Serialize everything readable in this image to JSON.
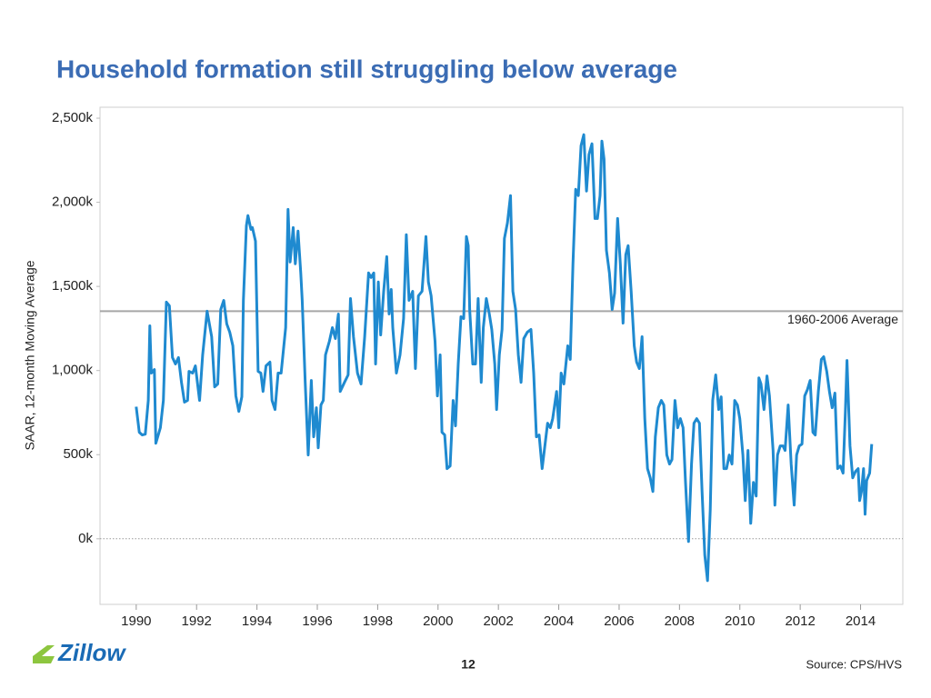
{
  "chart_data": {
    "type": "line",
    "title": "Household formation still struggling below average",
    "y_label": "SAAR, 12-month Moving Average",
    "xlim": [
      1988.8,
      2015.4
    ],
    "xticks": [
      1990,
      1992,
      1994,
      1996,
      1998,
      2000,
      2002,
      2004,
      2006,
      2008,
      2010,
      2012,
      2014
    ],
    "ylim": [
      -390,
      2565
    ],
    "yticks": [
      {
        "value": 0,
        "label": "0k"
      },
      {
        "value": 500,
        "label": "500k"
      },
      {
        "value": 1000,
        "label": "1,000k"
      },
      {
        "value": 1500,
        "label": "1,500k"
      },
      {
        "value": 2000,
        "label": "2,000k"
      },
      {
        "value": 2500,
        "label": "2,500k"
      }
    ],
    "zero_line": true,
    "reference_line": {
      "value": 1353,
      "label": "1960-2006 Average",
      "color": "#a6a6a6"
    },
    "series": [
      {
        "color": "#1f8ad0",
        "x": [
          1990.0,
          1990.1,
          1990.2,
          1990.3,
          1990.4,
          1990.45,
          1990.5,
          1990.6,
          1990.65,
          1990.8,
          1990.9,
          1991.0,
          1991.1,
          1991.2,
          1991.3,
          1991.4,
          1991.5,
          1991.6,
          1991.7,
          1991.75,
          1991.87,
          1991.96,
          1992.1,
          1992.2,
          1992.35,
          1992.5,
          1992.6,
          1992.7,
          1992.8,
          1992.9,
          1993.0,
          1993.1,
          1993.2,
          1993.3,
          1993.4,
          1993.5,
          1993.55,
          1993.65,
          1993.7,
          1993.8,
          1993.85,
          1993.95,
          1994.04,
          1994.13,
          1994.2,
          1994.3,
          1994.43,
          1994.5,
          1994.6,
          1994.7,
          1994.8,
          1994.95,
          1995.03,
          1995.1,
          1995.2,
          1995.27,
          1995.36,
          1995.45,
          1995.5,
          1995.6,
          1995.7,
          1995.8,
          1995.88,
          1995.97,
          1996.03,
          1996.12,
          1996.2,
          1996.27,
          1996.4,
          1996.5,
          1996.6,
          1996.7,
          1996.76,
          1996.9,
          1997.02,
          1997.1,
          1997.2,
          1997.33,
          1997.45,
          1997.57,
          1997.7,
          1997.78,
          1997.87,
          1997.93,
          1998.02,
          1998.1,
          1998.2,
          1998.3,
          1998.38,
          1998.45,
          1998.5,
          1998.62,
          1998.74,
          1998.86,
          1998.95,
          1999.04,
          1999.16,
          1999.25,
          1999.35,
          1999.47,
          1999.6,
          1999.68,
          1999.77,
          1999.9,
          1999.98,
          2000.07,
          2000.13,
          2000.22,
          2000.3,
          2000.4,
          2000.5,
          2000.58,
          2000.67,
          2000.76,
          2000.85,
          2000.94,
          2001.0,
          2001.05,
          2001.15,
          2001.24,
          2001.33,
          2001.43,
          2001.5,
          2001.6,
          2001.7,
          2001.78,
          2001.88,
          2001.94,
          2002.03,
          2002.12,
          2002.2,
          2002.3,
          2002.4,
          2002.48,
          2002.57,
          2002.66,
          2002.75,
          2002.84,
          2002.96,
          2003.08,
          2003.17,
          2003.26,
          2003.35,
          2003.45,
          2003.54,
          2003.63,
          2003.72,
          2003.8,
          2003.93,
          2004.0,
          2004.08,
          2004.17,
          2004.3,
          2004.38,
          2004.47,
          2004.56,
          2004.65,
          2004.74,
          2004.83,
          2004.92,
          2005.0,
          2005.1,
          2005.2,
          2005.28,
          2005.37,
          2005.43,
          2005.5,
          2005.58,
          2005.68,
          2005.77,
          2005.85,
          2005.95,
          2006.04,
          2006.13,
          2006.22,
          2006.3,
          2006.4,
          2006.5,
          2006.58,
          2006.67,
          2006.76,
          2006.85,
          2006.94,
          2007.03,
          2007.12,
          2007.2,
          2007.3,
          2007.4,
          2007.48,
          2007.58,
          2007.67,
          2007.75,
          2007.85,
          2007.94,
          2008.03,
          2008.12,
          2008.2,
          2008.3,
          2008.4,
          2008.48,
          2008.57,
          2008.66,
          2008.75,
          2008.84,
          2008.93,
          2009.02,
          2009.1,
          2009.2,
          2009.3,
          2009.38,
          2009.47,
          2009.56,
          2009.65,
          2009.74,
          2009.83,
          2009.92,
          2010.0,
          2010.1,
          2010.18,
          2010.27,
          2010.36,
          2010.45,
          2010.54,
          2010.63,
          2010.7,
          2010.8,
          2010.9,
          2010.98,
          2011.1,
          2011.16,
          2011.25,
          2011.34,
          2011.43,
          2011.5,
          2011.6,
          2011.7,
          2011.8,
          2011.88,
          2011.97,
          2012.06,
          2012.15,
          2012.24,
          2012.33,
          2012.42,
          2012.5,
          2012.6,
          2012.7,
          2012.78,
          2012.88,
          2012.97,
          2013.06,
          2013.15,
          2013.24,
          2013.33,
          2013.42,
          2013.5,
          2013.55,
          2013.65,
          2013.74,
          2013.83,
          2013.92,
          2013.97,
          2014.03,
          2014.1,
          2014.15,
          2014.2,
          2014.3,
          2014.37
        ],
        "values": [
          785,
          633,
          617,
          622,
          822,
          1266,
          985,
          1006,
          568,
          660,
          822,
          1407,
          1385,
          1077,
          1039,
          1077,
          930,
          812,
          822,
          995,
          985,
          1028,
          822,
          1093,
          1353,
          1201,
          903,
          920,
          1363,
          1417,
          1277,
          1228,
          1147,
          849,
          757,
          844,
          1417,
          1861,
          1921,
          1839,
          1850,
          1769,
          995,
          985,
          876,
          1028,
          1050,
          822,
          768,
          985,
          985,
          1255,
          1958,
          1645,
          1850,
          1634,
          1829,
          1580,
          1417,
          930,
          498,
          941,
          606,
          779,
          541,
          795,
          822,
          1093,
          1174,
          1255,
          1190,
          1336,
          876,
          930,
          974,
          1428,
          1201,
          985,
          920,
          1201,
          1580,
          1553,
          1580,
          1039,
          1526,
          1212,
          1471,
          1677,
          1336,
          1482,
          1255,
          985,
          1093,
          1309,
          1807,
          1417,
          1471,
          1012,
          1444,
          1471,
          1796,
          1526,
          1444,
          1174,
          849,
          1093,
          633,
          617,
          417,
          433,
          822,
          671,
          1039,
          1320,
          1309,
          1796,
          1742,
          1363,
          1039,
          1039,
          1428,
          930,
          1255,
          1428,
          1336,
          1244,
          1039,
          768,
          1093,
          1244,
          1785,
          1877,
          2040,
          1471,
          1363,
          1093,
          930,
          1190,
          1228,
          1244,
          985,
          606,
          617,
          417,
          552,
          687,
          660,
          714,
          876,
          660,
          985,
          920,
          1147,
          1066,
          1634,
          2077,
          2040,
          2337,
          2402,
          2067,
          2283,
          2348,
          1904,
          1904,
          2040,
          2364,
          2256,
          1715,
          1580,
          1363,
          1461,
          1904,
          1634,
          1282,
          1688,
          1742,
          1471,
          1147,
          1050,
          1012,
          1201,
          714,
          417,
          362,
          281,
          606,
          779,
          822,
          795,
          498,
          444,
          471,
          822,
          660,
          714,
          660,
          335,
          -16,
          444,
          687,
          714,
          687,
          281,
          -97,
          -249,
          173,
          822,
          974,
          768,
          844,
          417,
          417,
          498,
          444,
          822,
          795,
          714,
          498,
          227,
          525,
          92,
          335,
          254,
          957,
          920,
          768,
          968,
          849,
          525,
          200,
          498,
          552,
          552,
          525,
          795,
          444,
          200,
          498,
          552,
          563,
          849,
          887,
          941,
          633,
          617,
          876,
          1066,
          1082,
          995,
          876,
          779,
          866,
          417,
          433,
          390,
          768,
          1060,
          552,
          362,
          400,
          417,
          227,
          281,
          417,
          146,
          346,
          390,
          563
        ]
      }
    ]
  },
  "footer": {
    "logo": "Zillow",
    "page": "12",
    "source": "Source:  CPS/HVS"
  }
}
